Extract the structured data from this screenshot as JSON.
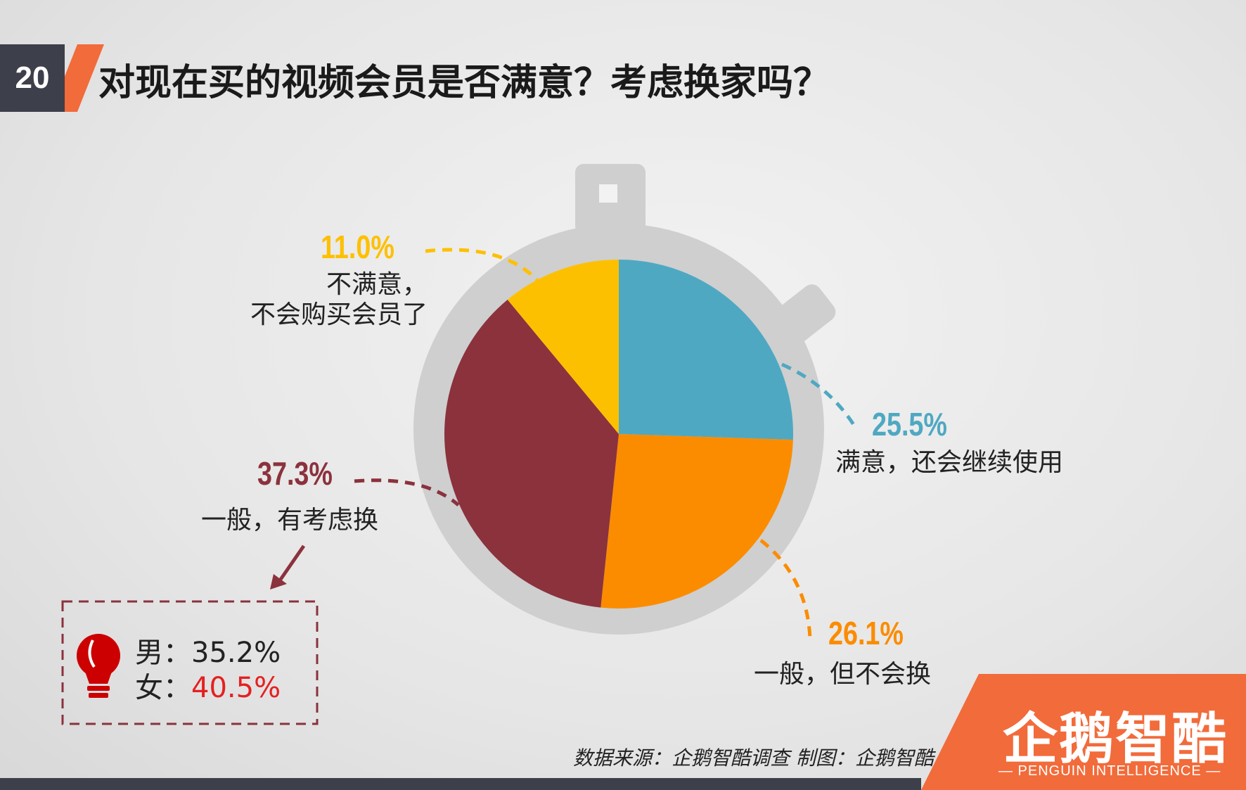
{
  "page_number": "20",
  "title": "对现在买的视频会员是否满意？考虑换家吗？",
  "colors": {
    "accent": "#f26b3a",
    "dark": "#3d3f4a",
    "blue": "#4fa8c2",
    "orange": "#fb8c00",
    "maroon": "#8b323d",
    "yellow": "#fdc000"
  },
  "chart_data": {
    "type": "pie",
    "title": "",
    "slices": [
      {
        "label": "满意，还会继续使用",
        "value": 25.5,
        "display": "25.5%",
        "color": "#4fa8c2"
      },
      {
        "label": "一般，但不会换",
        "value": 26.1,
        "display": "26.1%",
        "color": "#fb8c00"
      },
      {
        "label": "一般，有考虑换",
        "value": 37.3,
        "display": "37.3%",
        "color": "#8b323d"
      },
      {
        "label": "不满意，\n不会购买会员了",
        "value": 11.0,
        "display": "11.0%",
        "color": "#fdc000"
      }
    ]
  },
  "callout": {
    "male_label": "男：",
    "male_value": "35.2%",
    "female_label": "女：",
    "female_value": "40.5%",
    "icon": "lightbulb-icon"
  },
  "source": "数据来源：企鹅智酷调查    制图：企鹅智酷",
  "logo": {
    "name": "企鹅智酷",
    "sub": "— PENGUIN INTELLIGENCE —"
  }
}
